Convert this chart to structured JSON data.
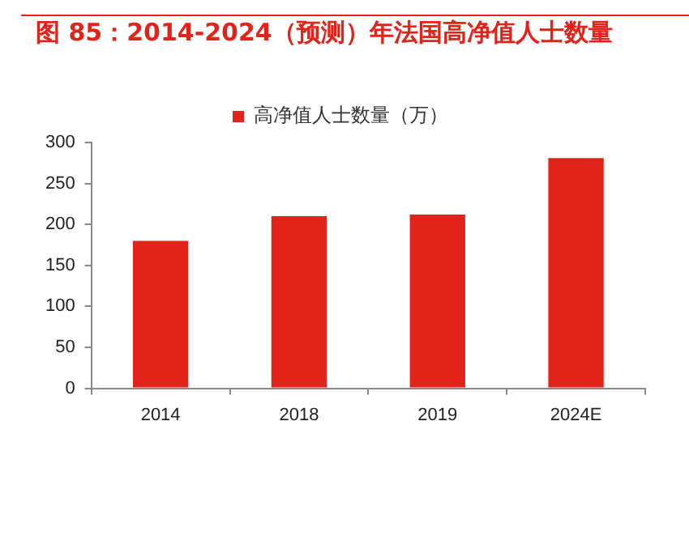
{
  "chart_data": {
    "type": "bar",
    "title": "图 85：2014-2024（预测）年法国高净值人士数量",
    "categories": [
      "2014",
      "2018",
      "2019",
      "2024E"
    ],
    "series": [
      {
        "name": "高净值人士数量（万）",
        "color": "#e2231a",
        "values": [
          180,
          210,
          212,
          281
        ]
      }
    ],
    "ylim": [
      0,
      300
    ],
    "yticks": [
      0,
      50,
      100,
      150,
      200,
      250,
      300
    ],
    "grid": false,
    "legend": "top"
  }
}
